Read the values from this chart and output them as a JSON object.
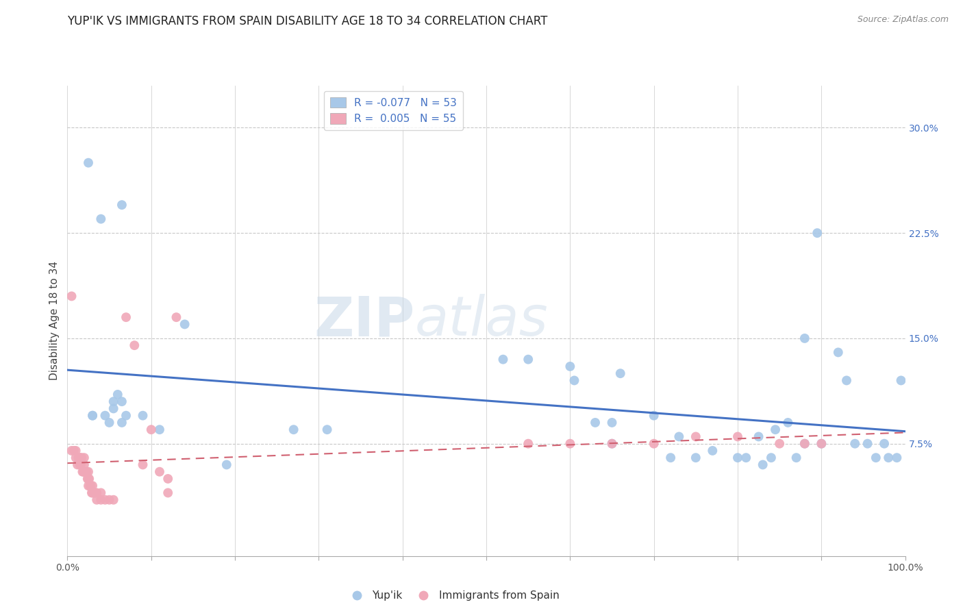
{
  "title": "YUP'IK VS IMMIGRANTS FROM SPAIN DISABILITY AGE 18 TO 34 CORRELATION CHART",
  "source": "Source: ZipAtlas.com",
  "ylabel": "Disability Age 18 to 34",
  "ytick_labels": [
    "7.5%",
    "15.0%",
    "22.5%",
    "30.0%"
  ],
  "ytick_values": [
    0.075,
    0.15,
    0.225,
    0.3
  ],
  "xlim": [
    0.0,
    1.0
  ],
  "ylim": [
    -0.005,
    0.33
  ],
  "blue_color": "#a8c8e8",
  "pink_color": "#f0a8b8",
  "trend_blue": "#4472c4",
  "trend_pink": "#d06070",
  "blue_R": "-0.077",
  "blue_N": "53",
  "pink_R": "0.005",
  "pink_N": "55",
  "blue_points_x": [
    0.025,
    0.04,
    0.055,
    0.06,
    0.065,
    0.065,
    0.07,
    0.09,
    0.11,
    0.14,
    0.19,
    0.31,
    0.52,
    0.55,
    0.6,
    0.605,
    0.63,
    0.65,
    0.66,
    0.7,
    0.72,
    0.73,
    0.75,
    0.77,
    0.8,
    0.81,
    0.825,
    0.83,
    0.84,
    0.845,
    0.86,
    0.87,
    0.88,
    0.9,
    0.92,
    0.93,
    0.94,
    0.955,
    0.965,
    0.975,
    0.98,
    0.99,
    0.995,
    0.03,
    0.03,
    0.045,
    0.05,
    0.055,
    0.065,
    0.27,
    0.65,
    0.88,
    0.895
  ],
  "blue_points_y": [
    0.275,
    0.235,
    0.105,
    0.11,
    0.105,
    0.09,
    0.095,
    0.095,
    0.085,
    0.16,
    0.06,
    0.085,
    0.135,
    0.135,
    0.13,
    0.12,
    0.09,
    0.09,
    0.125,
    0.095,
    0.065,
    0.08,
    0.065,
    0.07,
    0.065,
    0.065,
    0.08,
    0.06,
    0.065,
    0.085,
    0.09,
    0.065,
    0.075,
    0.075,
    0.14,
    0.12,
    0.075,
    0.075,
    0.065,
    0.075,
    0.065,
    0.065,
    0.12,
    0.095,
    0.095,
    0.095,
    0.09,
    0.1,
    0.245,
    0.085,
    0.075,
    0.15,
    0.225
  ],
  "pink_points_x": [
    0.005,
    0.005,
    0.008,
    0.01,
    0.01,
    0.012,
    0.013,
    0.015,
    0.015,
    0.015,
    0.016,
    0.017,
    0.018,
    0.019,
    0.02,
    0.02,
    0.02,
    0.022,
    0.023,
    0.024,
    0.025,
    0.025,
    0.025,
    0.026,
    0.027,
    0.028,
    0.029,
    0.03,
    0.03,
    0.032,
    0.033,
    0.035,
    0.035,
    0.04,
    0.04,
    0.045,
    0.05,
    0.055,
    0.07,
    0.08,
    0.09,
    0.1,
    0.11,
    0.12,
    0.13,
    0.55,
    0.6,
    0.65,
    0.7,
    0.75,
    0.8,
    0.85,
    0.88,
    0.9,
    0.12
  ],
  "pink_points_y": [
    0.18,
    0.07,
    0.07,
    0.065,
    0.07,
    0.06,
    0.065,
    0.065,
    0.065,
    0.06,
    0.06,
    0.065,
    0.055,
    0.055,
    0.065,
    0.06,
    0.055,
    0.055,
    0.055,
    0.05,
    0.055,
    0.05,
    0.045,
    0.05,
    0.045,
    0.045,
    0.04,
    0.045,
    0.04,
    0.04,
    0.04,
    0.04,
    0.035,
    0.04,
    0.035,
    0.035,
    0.035,
    0.035,
    0.165,
    0.145,
    0.06,
    0.085,
    0.055,
    0.05,
    0.165,
    0.075,
    0.075,
    0.075,
    0.075,
    0.08,
    0.08,
    0.075,
    0.075,
    0.075,
    0.04
  ]
}
